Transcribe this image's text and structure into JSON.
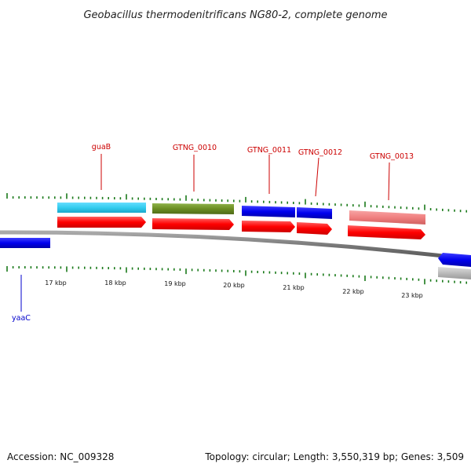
{
  "title": "Geobacillus thermodenitrificans NG80-2, complete genome",
  "footer": {
    "accession": "Accession: NC_009328",
    "summary": "Topology: circular; Length: 3,550,319 bp; Genes: 3,509"
  },
  "scale_labels": [
    "17 kbp",
    "18 kbp",
    "19 kbp",
    "20 kbp",
    "21 kbp",
    "22 kbp",
    "23 kbp"
  ],
  "gene_labels": [
    {
      "text": "guaB",
      "color": "#cc0000"
    },
    {
      "text": "GTNG_0010",
      "color": "#cc0000"
    },
    {
      "text": "GTNG_0011",
      "color": "#cc0000"
    },
    {
      "text": "GTNG_0012",
      "color": "#cc0000"
    },
    {
      "text": "GTNG_0013",
      "color": "#cc0000"
    },
    {
      "text": "yaaC",
      "color": "#0000cc"
    }
  ],
  "colors": {
    "forward_cds": "#ff0000",
    "reverse_cds": "#0000ee",
    "sky_blue": "#33ccee",
    "olive": "#6b8e23",
    "light_red": "#f08080",
    "gray_feature": "#bbbbbb",
    "backbone": "#888888",
    "tick_green": "#1a7a1a"
  }
}
